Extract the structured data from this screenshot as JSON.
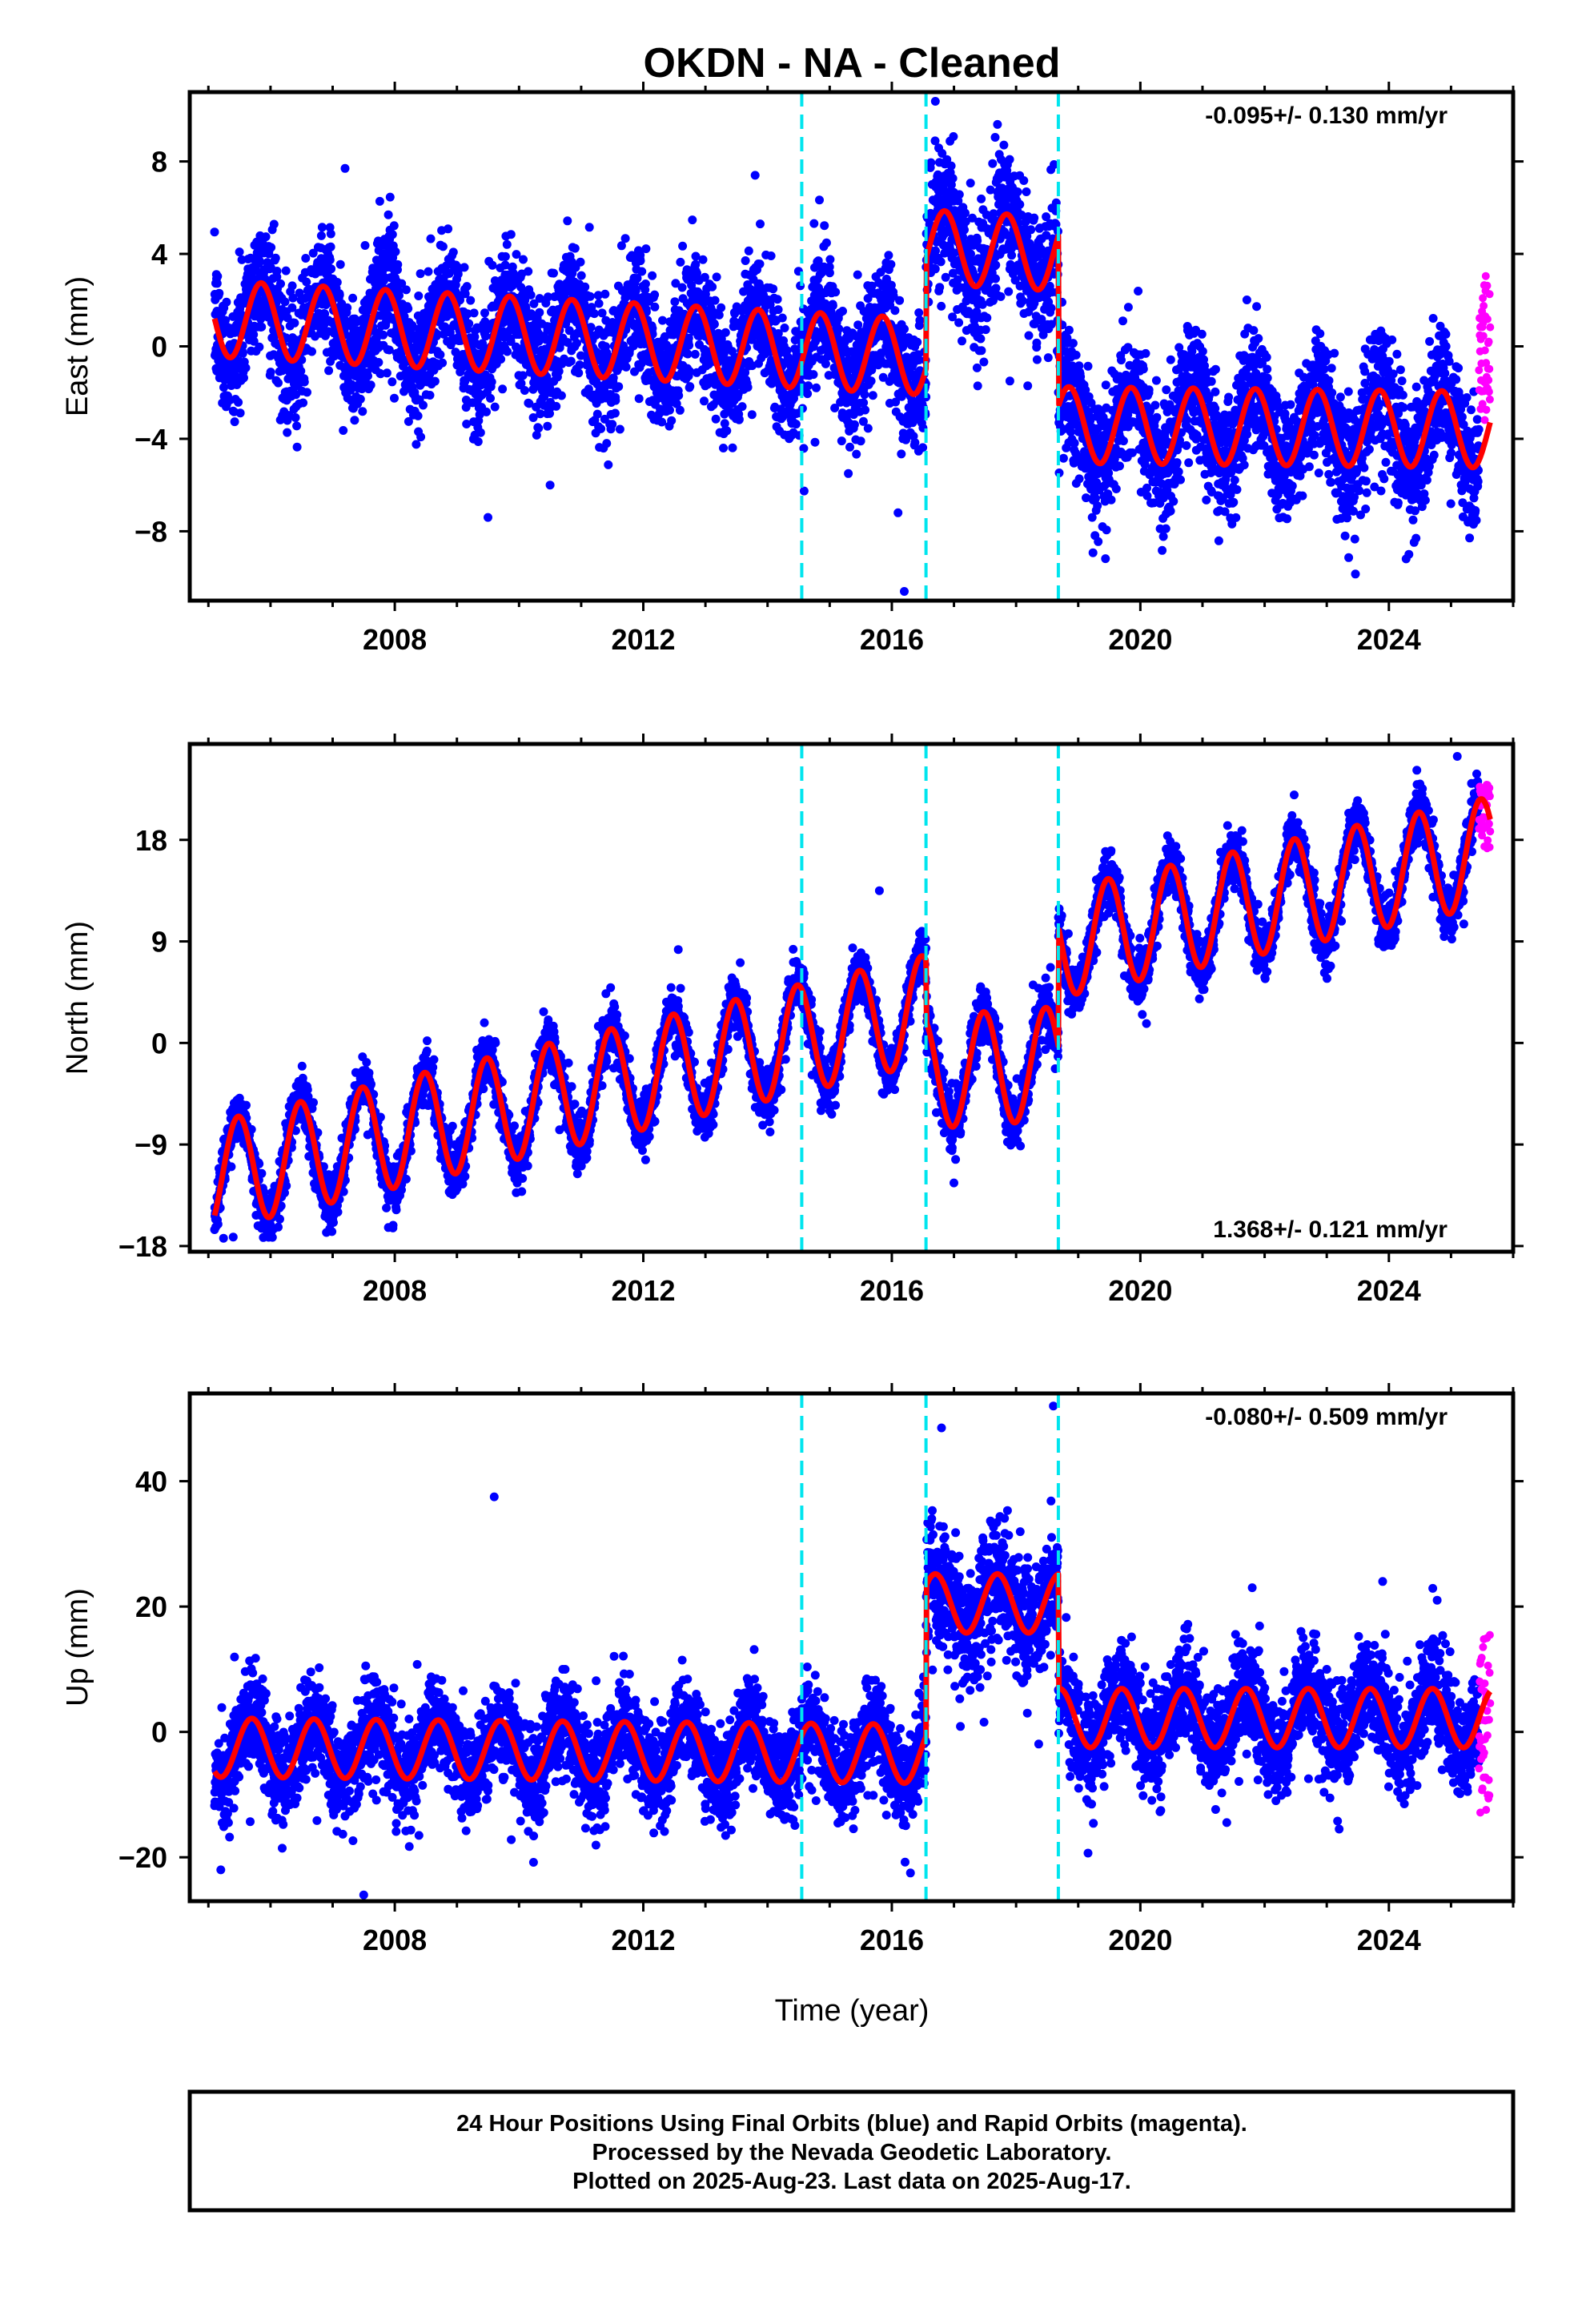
{
  "title": "OKDN  - NA - Cleaned",
  "xlabel": "Time (year)",
  "footer": {
    "line1": "24 Hour Positions Using Final Orbits (blue) and Rapid Orbits (magenta).",
    "line2": "Processed by the Nevada Geodetic Laboratory.",
    "line3": "Plotted on 2025-Aug-23. Last data on 2025-Aug-17."
  },
  "colors": {
    "final_orbits": "#0000ff",
    "rapid_orbits": "#ff00ff",
    "model_fit": "#ff0000",
    "steps": "#00e5ee",
    "frame": "#000000"
  },
  "chart_data": [
    {
      "type": "scatter",
      "panel": "east",
      "ylabel": "East (mm)",
      "rate_text": "-0.095+/- 0.130 mm/yr",
      "rate_position": "top-right",
      "xlim": [
        2004.7,
        2026.0
      ],
      "ylim": [
        -11.0,
        11.0
      ],
      "xticks": [
        2008,
        2012,
        2016,
        2020,
        2024
      ],
      "yticks": [
        -8,
        -4,
        0,
        4,
        8
      ],
      "yticklabels": [
        "−8",
        "−4",
        "0",
        "4",
        "8"
      ],
      "steps": [
        2014.55,
        2016.55,
        2018.68
      ],
      "data_start": 2005.1,
      "data_end": 2025.45,
      "rapid_start": 2025.45,
      "rapid_end": 2025.63,
      "segments": [
        {
          "from": 2005.1,
          "to": 2016.55,
          "offset_start": 1.2,
          "offset_end": -0.45,
          "amplitude": 1.65,
          "phase_peak": 0.85,
          "scatter": 1.5
        },
        {
          "from": 2016.55,
          "to": 2018.68,
          "offset_start": 4.3,
          "offset_end": 4.0,
          "amplitude": 1.6,
          "phase_peak": 0.85,
          "scatter": 1.6
        },
        {
          "from": 2018.68,
          "to": 2025.63,
          "offset_start": -3.4,
          "offset_end": -3.6,
          "amplitude": 1.65,
          "phase_peak": 0.85,
          "scatter": 1.5
        }
      ],
      "outliers": [
        [
          2005.4,
          -2.8
        ],
        [
          2009.5,
          -7.4
        ],
        [
          2010.5,
          -6.0
        ],
        [
          2015.3,
          -5.5
        ],
        [
          2016.2,
          -10.6
        ],
        [
          2016.1,
          -7.2
        ],
        [
          2017.9,
          -1.5
        ],
        [
          2007.2,
          7.7
        ],
        [
          2013.8,
          7.4
        ],
        [
          2016.7,
          10.6
        ],
        [
          2017.7,
          9.6
        ]
      ],
      "rapid_range": [
        -3.4,
        3.2
      ]
    },
    {
      "type": "scatter",
      "panel": "north",
      "ylabel": "North (mm)",
      "rate_text": "1.368+/- 0.121 mm/yr",
      "rate_position": "bottom-right",
      "xlim": [
        2004.7,
        2026.0
      ],
      "ylim": [
        -18.5,
        26.5
      ],
      "xticks": [
        2008,
        2012,
        2016,
        2020,
        2024
      ],
      "yticks": [
        -18,
        -9,
        0,
        9,
        18
      ],
      "yticklabels": [
        "−18",
        "−9",
        "0",
        "9",
        "18"
      ],
      "steps": [
        2014.55,
        2016.55,
        2018.68
      ],
      "data_start": 2005.1,
      "data_end": 2025.45,
      "rapid_start": 2025.45,
      "rapid_end": 2025.63,
      "segments": [
        {
          "from": 2005.1,
          "to": 2016.55,
          "offset_start": -11.8,
          "offset_end": 3.0,
          "amplitude": 4.8,
          "phase_peak": 0.48,
          "scatter": 1.3
        },
        {
          "from": 2016.55,
          "to": 2018.68,
          "offset_start": -2.6,
          "offset_end": -1.8,
          "amplitude": 5.0,
          "phase_peak": 0.48,
          "scatter": 1.4
        },
        {
          "from": 2018.68,
          "to": 2025.63,
          "offset_start": 8.8,
          "offset_end": 17.0,
          "amplitude": 4.8,
          "phase_peak": 0.48,
          "scatter": 1.3
        }
      ],
      "outliers": [
        [
          2005.4,
          -17.2
        ],
        [
          2006.9,
          -16.8
        ],
        [
          2017.0,
          -12.4
        ],
        [
          2015.8,
          13.5
        ],
        [
          2025.1,
          25.4
        ]
      ],
      "rapid_range": [
        17.0,
        23.0
      ]
    },
    {
      "type": "scatter",
      "panel": "up",
      "ylabel": "Up (mm)",
      "rate_text": "-0.080+/- 0.509 mm/yr",
      "rate_position": "top-right",
      "xlim": [
        2004.7,
        2026.0
      ],
      "ylim": [
        -27.0,
        54.0
      ],
      "xticks": [
        2008,
        2012,
        2016,
        2020,
        2024
      ],
      "yticks": [
        -20,
        0,
        20,
        40
      ],
      "yticklabels": [
        "−20",
        "0",
        "20",
        "40"
      ],
      "steps": [
        2014.55,
        2016.55,
        2018.68
      ],
      "data_start": 2005.1,
      "data_end": 2025.45,
      "rapid_start": 2025.45,
      "rapid_end": 2025.63,
      "segments": [
        {
          "from": 2005.1,
          "to": 2016.55,
          "offset_start": -2.5,
          "offset_end": -3.5,
          "amplitude": 4.7,
          "phase_peak": 0.7,
          "scatter": 4.2
        },
        {
          "from": 2016.55,
          "to": 2018.68,
          "offset_start": 20.5,
          "offset_end": 20.5,
          "amplitude": 4.7,
          "phase_peak": 0.7,
          "scatter": 5.5
        },
        {
          "from": 2018.68,
          "to": 2025.63,
          "offset_start": 2.2,
          "offset_end": 2.2,
          "amplitude": 4.7,
          "phase_peak": 0.7,
          "scatter": 4.5
        }
      ],
      "outliers": [
        [
          2005.2,
          -22.0
        ],
        [
          2007.5,
          -26.0
        ],
        [
          2009.6,
          37.5
        ],
        [
          2016.8,
          48.5
        ],
        [
          2018.6,
          52.0
        ],
        [
          2023.2,
          -15.5
        ],
        [
          2021.8,
          23.0
        ],
        [
          2023.9,
          24.0
        ],
        [
          2016.3,
          -22.5
        ]
      ],
      "rapid_range": [
        -13.5,
        15.5
      ]
    }
  ]
}
